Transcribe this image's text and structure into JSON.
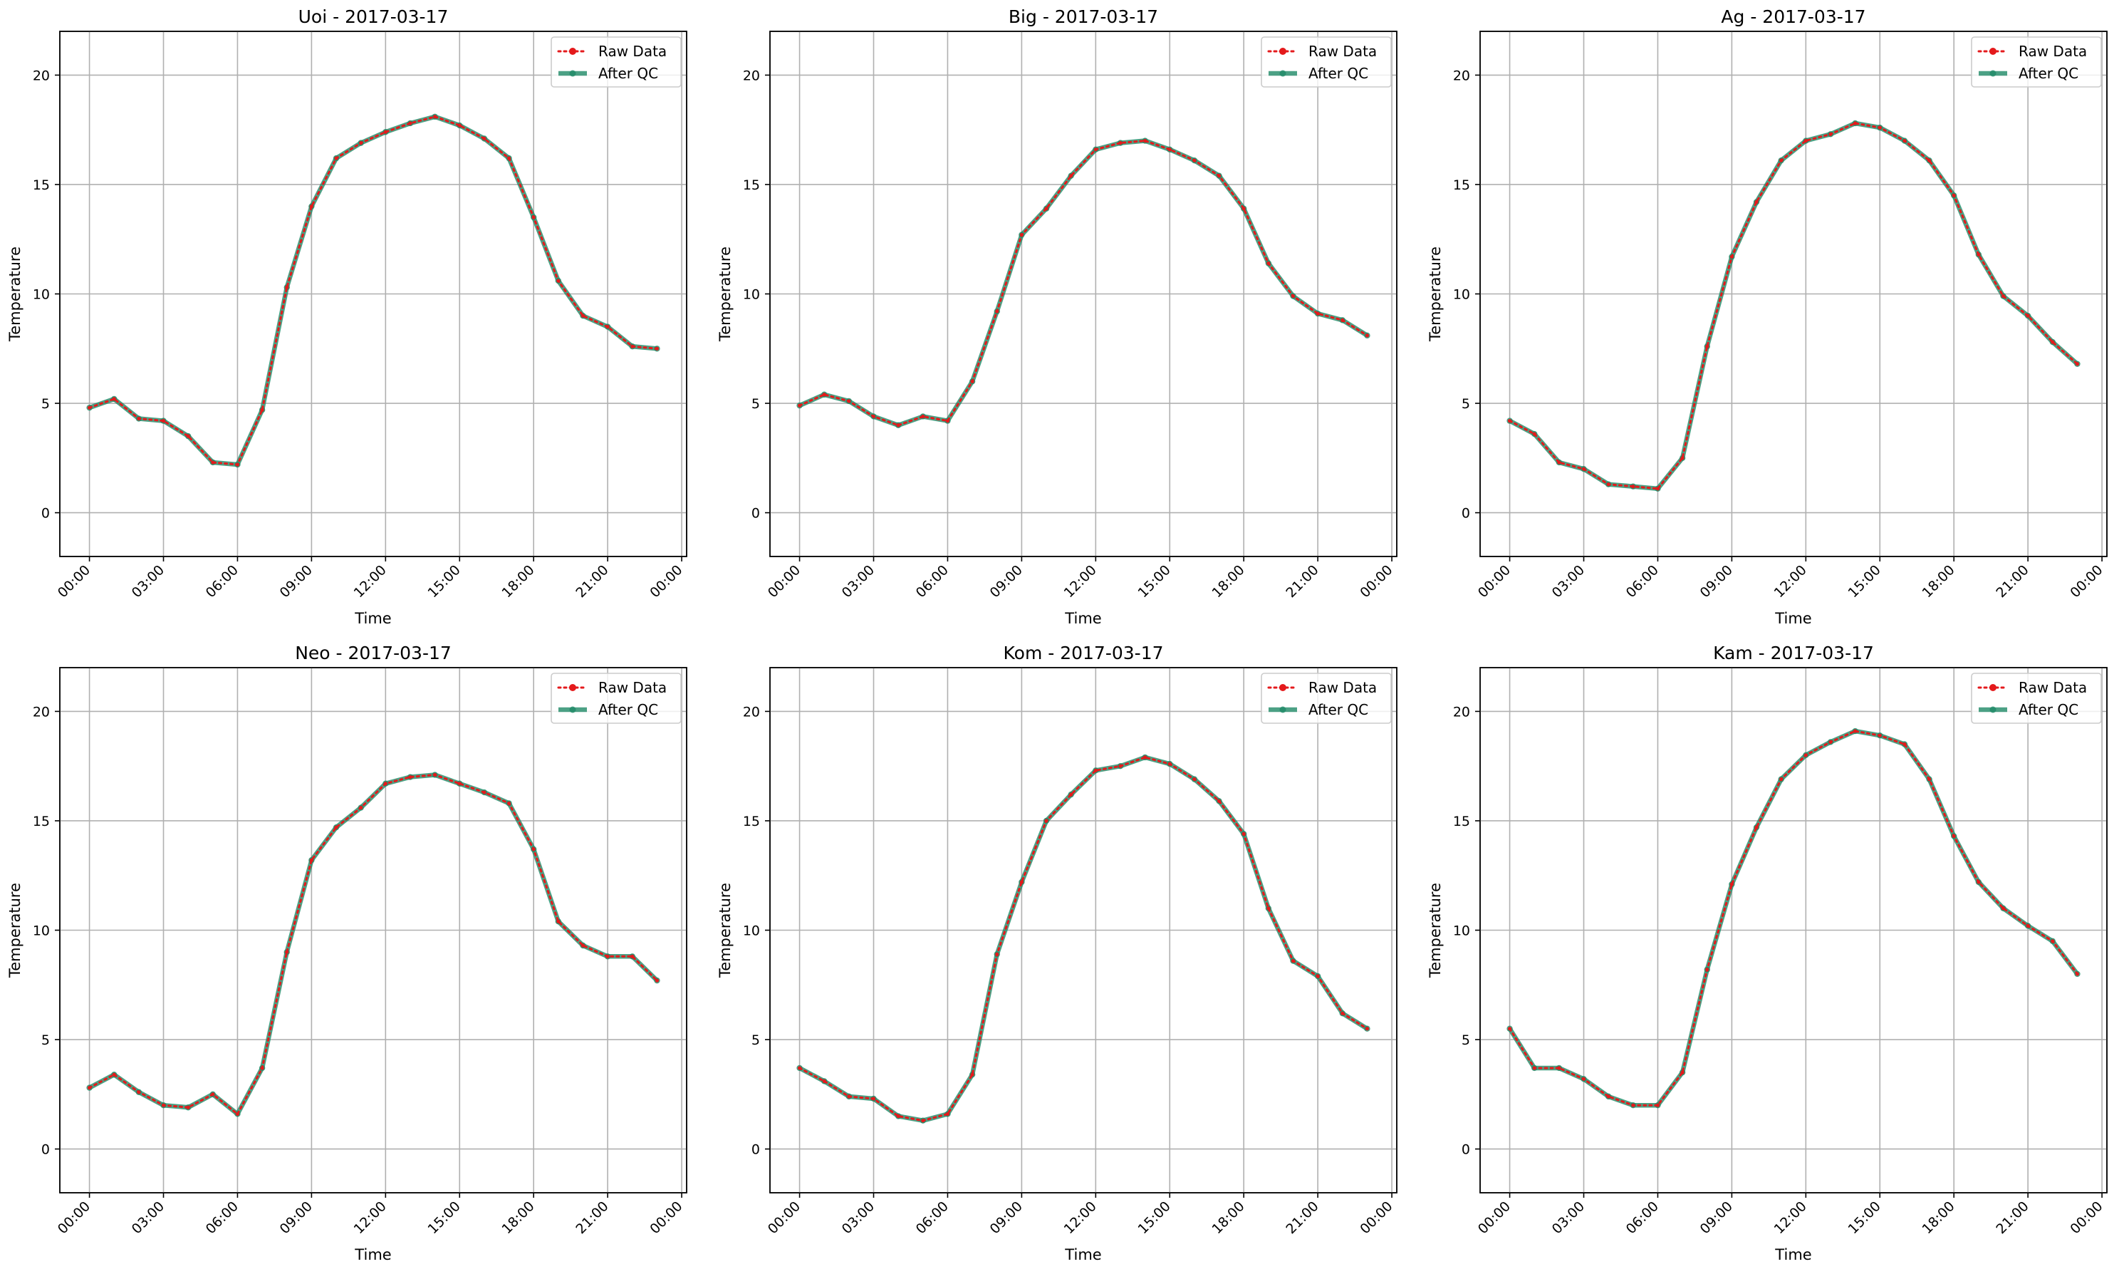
{
  "colors": {
    "raw": "#e41a1c",
    "qc": "#1f8a67"
  },
  "chart_data": [
    {
      "type": "line",
      "title": "Uoi - 2017-03-17",
      "xlabel": "Time",
      "ylabel": "Temperature",
      "xticks": [
        "00:00",
        "03:00",
        "06:00",
        "09:00",
        "12:00",
        "15:00",
        "18:00",
        "21:00",
        "00:00"
      ],
      "yticks": [
        "0",
        "5",
        "10",
        "15",
        "20"
      ],
      "xlim": [
        "2017-03-17 00:00",
        "2017-03-18 00:00"
      ],
      "ylim": [
        -2,
        22
      ],
      "grid": true,
      "legend": "upper right",
      "x": [
        "00:00",
        "01:00",
        "02:00",
        "03:00",
        "04:00",
        "05:00",
        "06:00",
        "07:00",
        "08:00",
        "09:00",
        "10:00",
        "11:00",
        "12:00",
        "13:00",
        "14:00",
        "15:00",
        "16:00",
        "17:00",
        "18:00",
        "19:00",
        "20:00",
        "21:00",
        "22:00",
        "23:00"
      ],
      "series": [
        {
          "name": "Raw Data",
          "values": [
            4.8,
            5.2,
            4.3,
            4.2,
            3.5,
            2.3,
            2.2,
            4.7,
            10.3,
            14.0,
            16.2,
            16.9,
            17.4,
            17.8,
            18.1,
            17.7,
            17.1,
            16.2,
            13.5,
            10.6,
            9.0,
            8.5,
            7.6,
            7.5
          ]
        },
        {
          "name": "After QC",
          "values": [
            4.8,
            5.2,
            4.3,
            4.2,
            3.5,
            2.3,
            2.2,
            4.7,
            10.3,
            14.0,
            16.2,
            16.9,
            17.4,
            17.8,
            18.1,
            17.7,
            17.1,
            16.2,
            13.5,
            10.6,
            9.0,
            8.5,
            7.6,
            7.5
          ]
        }
      ]
    },
    {
      "type": "line",
      "title": "Big - 2017-03-17",
      "xlabel": "Time",
      "ylabel": "Temperature",
      "xticks": [
        "00:00",
        "03:00",
        "06:00",
        "09:00",
        "12:00",
        "15:00",
        "18:00",
        "21:00",
        "00:00"
      ],
      "yticks": [
        "0",
        "5",
        "10",
        "15",
        "20"
      ],
      "xlim": [
        "2017-03-17 00:00",
        "2017-03-18 00:00"
      ],
      "ylim": [
        -2,
        22
      ],
      "grid": true,
      "legend": "upper right",
      "x": [
        "00:00",
        "01:00",
        "02:00",
        "03:00",
        "04:00",
        "05:00",
        "06:00",
        "07:00",
        "08:00",
        "09:00",
        "10:00",
        "11:00",
        "12:00",
        "13:00",
        "14:00",
        "15:00",
        "16:00",
        "17:00",
        "18:00",
        "19:00",
        "20:00",
        "21:00",
        "22:00",
        "23:00"
      ],
      "series": [
        {
          "name": "Raw Data",
          "values": [
            4.9,
            5.4,
            5.1,
            4.4,
            4.0,
            4.4,
            4.2,
            6.0,
            9.2,
            12.7,
            13.9,
            15.4,
            16.6,
            16.9,
            17.0,
            16.6,
            16.1,
            15.4,
            13.9,
            11.4,
            9.9,
            9.1,
            8.8,
            8.1
          ]
        },
        {
          "name": "After QC",
          "values": [
            4.9,
            5.4,
            5.1,
            4.4,
            4.0,
            4.4,
            4.2,
            6.0,
            9.2,
            12.7,
            13.9,
            15.4,
            16.6,
            16.9,
            17.0,
            16.6,
            16.1,
            15.4,
            13.9,
            11.4,
            9.9,
            9.1,
            8.8,
            8.1
          ]
        }
      ]
    },
    {
      "type": "line",
      "title": "Ag - 2017-03-17",
      "xlabel": "Time",
      "ylabel": "Temperature",
      "xticks": [
        "00:00",
        "03:00",
        "06:00",
        "09:00",
        "12:00",
        "15:00",
        "18:00",
        "21:00",
        "00:00"
      ],
      "yticks": [
        "0",
        "5",
        "10",
        "15",
        "20"
      ],
      "xlim": [
        "2017-03-17 00:00",
        "2017-03-18 00:00"
      ],
      "ylim": [
        -2,
        22
      ],
      "grid": true,
      "legend": "upper right",
      "x": [
        "00:00",
        "01:00",
        "02:00",
        "03:00",
        "04:00",
        "05:00",
        "06:00",
        "07:00",
        "08:00",
        "09:00",
        "10:00",
        "11:00",
        "12:00",
        "13:00",
        "14:00",
        "15:00",
        "16:00",
        "17:00",
        "18:00",
        "19:00",
        "20:00",
        "21:00",
        "22:00",
        "23:00"
      ],
      "series": [
        {
          "name": "Raw Data",
          "values": [
            4.2,
            3.6,
            2.3,
            2.0,
            1.3,
            1.2,
            1.1,
            2.5,
            7.6,
            11.7,
            14.2,
            16.1,
            17.0,
            17.3,
            17.8,
            17.6,
            17.0,
            16.1,
            14.5,
            11.8,
            9.9,
            9.0,
            7.8,
            6.8
          ]
        },
        {
          "name": "After QC",
          "values": [
            4.2,
            3.6,
            2.3,
            2.0,
            1.3,
            1.2,
            1.1,
            2.5,
            7.6,
            11.7,
            14.2,
            16.1,
            17.0,
            17.3,
            17.8,
            17.6,
            17.0,
            16.1,
            14.5,
            11.8,
            9.9,
            9.0,
            7.8,
            6.8
          ]
        }
      ]
    },
    {
      "type": "line",
      "title": "Neo - 2017-03-17",
      "xlabel": "Time",
      "ylabel": "Temperature",
      "xticks": [
        "00:00",
        "03:00",
        "06:00",
        "09:00",
        "12:00",
        "15:00",
        "18:00",
        "21:00",
        "00:00"
      ],
      "yticks": [
        "0",
        "5",
        "10",
        "15",
        "20"
      ],
      "xlim": [
        "2017-03-17 00:00",
        "2017-03-18 00:00"
      ],
      "ylim": [
        -2,
        22
      ],
      "grid": true,
      "legend": "upper right",
      "x": [
        "00:00",
        "01:00",
        "02:00",
        "03:00",
        "04:00",
        "05:00",
        "06:00",
        "07:00",
        "08:00",
        "09:00",
        "10:00",
        "11:00",
        "12:00",
        "13:00",
        "14:00",
        "15:00",
        "16:00",
        "17:00",
        "18:00",
        "19:00",
        "20:00",
        "21:00",
        "22:00",
        "23:00"
      ],
      "series": [
        {
          "name": "Raw Data",
          "values": [
            2.8,
            3.4,
            2.6,
            2.0,
            1.9,
            2.5,
            1.6,
            3.7,
            9.0,
            13.2,
            14.7,
            15.6,
            16.7,
            17.0,
            17.1,
            16.7,
            16.3,
            15.8,
            13.7,
            10.4,
            9.3,
            8.8,
            8.8,
            7.7
          ]
        },
        {
          "name": "After QC",
          "values": [
            2.8,
            3.4,
            2.6,
            2.0,
            1.9,
            2.5,
            1.6,
            3.7,
            9.0,
            13.2,
            14.7,
            15.6,
            16.7,
            17.0,
            17.1,
            16.7,
            16.3,
            15.8,
            13.7,
            10.4,
            9.3,
            8.8,
            8.8,
            7.7
          ]
        }
      ]
    },
    {
      "type": "line",
      "title": "Kom - 2017-03-17",
      "xlabel": "Time",
      "ylabel": "Temperature",
      "xticks": [
        "00:00",
        "03:00",
        "06:00",
        "09:00",
        "12:00",
        "15:00",
        "18:00",
        "21:00",
        "00:00"
      ],
      "yticks": [
        "0",
        "5",
        "10",
        "15",
        "20"
      ],
      "xlim": [
        "2017-03-17 00:00",
        "2017-03-18 00:00"
      ],
      "ylim": [
        -2,
        22
      ],
      "grid": true,
      "legend": "upper right",
      "x": [
        "00:00",
        "01:00",
        "02:00",
        "03:00",
        "04:00",
        "05:00",
        "06:00",
        "07:00",
        "08:00",
        "09:00",
        "10:00",
        "11:00",
        "12:00",
        "13:00",
        "14:00",
        "15:00",
        "16:00",
        "17:00",
        "18:00",
        "19:00",
        "20:00",
        "21:00",
        "22:00",
        "23:00"
      ],
      "series": [
        {
          "name": "Raw Data",
          "values": [
            3.7,
            3.1,
            2.4,
            2.3,
            1.5,
            1.3,
            1.6,
            3.4,
            8.9,
            12.2,
            15.0,
            16.2,
            17.3,
            17.5,
            17.9,
            17.6,
            16.9,
            15.9,
            14.4,
            11.0,
            8.6,
            7.9,
            6.2,
            5.5
          ]
        },
        {
          "name": "After QC",
          "values": [
            3.7,
            3.1,
            2.4,
            2.3,
            1.5,
            1.3,
            1.6,
            3.4,
            8.9,
            12.2,
            15.0,
            16.2,
            17.3,
            17.5,
            17.9,
            17.6,
            16.9,
            15.9,
            14.4,
            11.0,
            8.6,
            7.9,
            6.2,
            5.5
          ]
        }
      ]
    },
    {
      "type": "line",
      "title": "Kam - 2017-03-17",
      "xlabel": "Time",
      "ylabel": "Temperature",
      "xticks": [
        "00:00",
        "03:00",
        "06:00",
        "09:00",
        "12:00",
        "15:00",
        "18:00",
        "21:00",
        "00:00"
      ],
      "yticks": [
        "0",
        "5",
        "10",
        "15",
        "20"
      ],
      "xlim": [
        "2017-03-17 00:00",
        "2017-03-18 00:00"
      ],
      "ylim": [
        -2,
        22
      ],
      "grid": true,
      "legend": "upper right",
      "x": [
        "00:00",
        "01:00",
        "02:00",
        "03:00",
        "04:00",
        "05:00",
        "06:00",
        "07:00",
        "08:00",
        "09:00",
        "10:00",
        "11:00",
        "12:00",
        "13:00",
        "14:00",
        "15:00",
        "16:00",
        "17:00",
        "18:00",
        "19:00",
        "20:00",
        "21:00",
        "22:00",
        "23:00"
      ],
      "series": [
        {
          "name": "Raw Data",
          "values": [
            5.5,
            3.7,
            3.7,
            3.2,
            2.4,
            2.0,
            2.0,
            3.5,
            8.2,
            12.1,
            14.7,
            16.9,
            18.0,
            18.6,
            19.1,
            18.9,
            18.5,
            16.9,
            14.3,
            12.2,
            11.0,
            10.2,
            9.5,
            8.0
          ]
        },
        {
          "name": "After QC",
          "values": [
            5.5,
            3.7,
            3.7,
            3.2,
            2.4,
            2.0,
            2.0,
            3.5,
            8.2,
            12.1,
            14.7,
            16.9,
            18.0,
            18.6,
            19.1,
            18.9,
            18.5,
            16.9,
            14.3,
            12.2,
            11.0,
            10.2,
            9.5,
            8.0
          ]
        }
      ]
    }
  ]
}
